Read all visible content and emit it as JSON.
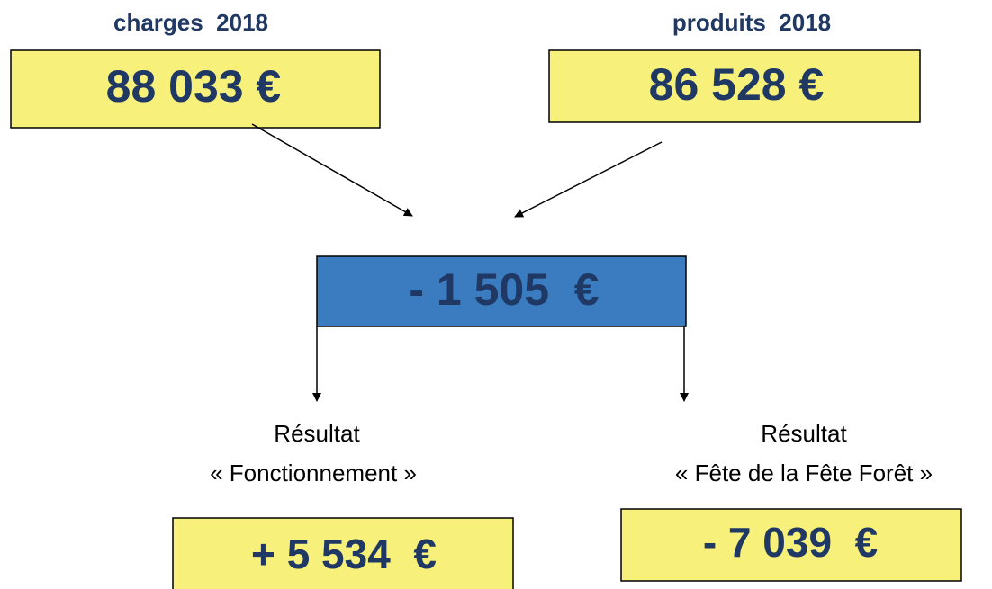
{
  "charges": {
    "label": "charges  2018",
    "amount": "88 033 €"
  },
  "produits": {
    "label": "produits  2018",
    "amount": "86 528 €"
  },
  "resultat": {
    "amount": "- 1 505  €"
  },
  "fonctionnement": {
    "title": "Résultat",
    "subtitle": "« Fonctionnement »",
    "amount": "+ 5 534  €"
  },
  "fete": {
    "title": "Résultat",
    "subtitle": "« Fête de la Fête Forêt »",
    "amount": "- 7 039  €"
  }
}
